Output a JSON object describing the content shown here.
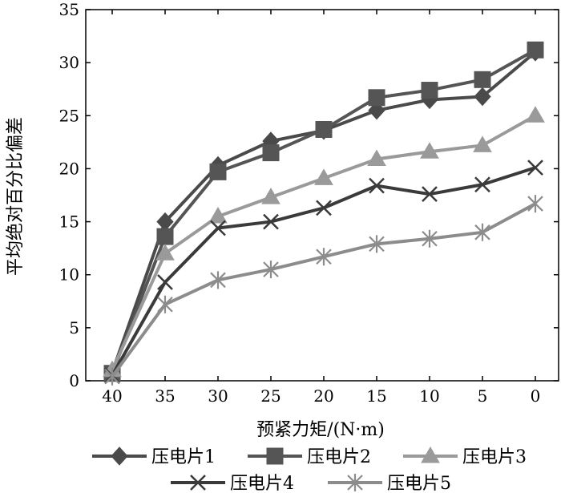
{
  "chart_data": {
    "type": "line",
    "title": "",
    "xlabel": "预紧力矩/(N·m)",
    "ylabel": "平均绝对百分比偏差",
    "categories": [
      "40",
      "35",
      "30",
      "25",
      "20",
      "15",
      "10",
      "5",
      "0"
    ],
    "ylim": [
      0,
      35
    ],
    "yticks": [
      0,
      5,
      10,
      15,
      20,
      25,
      30,
      35
    ],
    "grid": false,
    "legend_position": "bottom",
    "series": [
      {
        "name": "压电片1",
        "marker": "diamond",
        "color": "#4a4a4a",
        "values": [
          0.8,
          15.0,
          20.3,
          22.6,
          23.6,
          25.5,
          26.5,
          26.8,
          31.0
        ]
      },
      {
        "name": "压电片2",
        "marker": "square",
        "color": "#555555",
        "values": [
          0.7,
          13.6,
          19.7,
          21.5,
          23.7,
          26.7,
          27.4,
          28.4,
          31.2
        ]
      },
      {
        "name": "压电片3",
        "marker": "triangle",
        "color": "#9a9a9a",
        "values": [
          1.0,
          12.0,
          15.5,
          17.3,
          19.1,
          20.9,
          21.6,
          22.2,
          25.0
        ]
      },
      {
        "name": "压电片4",
        "marker": "x",
        "color": "#3a3a3a",
        "values": [
          0.5,
          9.3,
          14.4,
          15.0,
          16.3,
          18.4,
          17.6,
          18.5,
          20.1
        ]
      },
      {
        "name": "压电片5",
        "marker": "asterisk",
        "color": "#8c8c8c",
        "values": [
          0.4,
          7.2,
          9.5,
          10.5,
          11.7,
          12.9,
          13.4,
          14.0,
          16.7
        ]
      }
    ]
  }
}
